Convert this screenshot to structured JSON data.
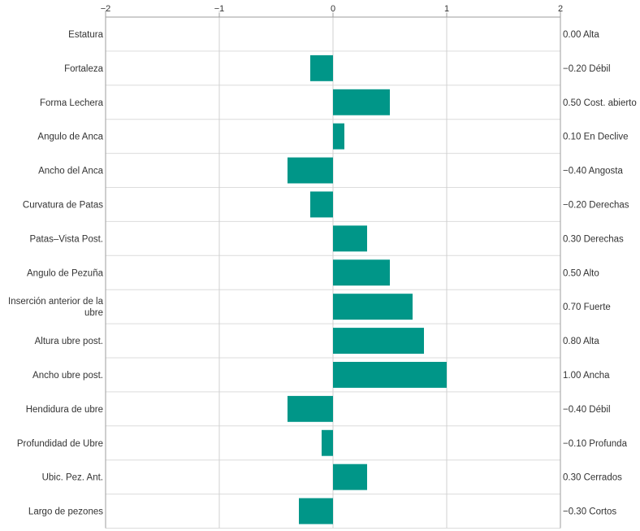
{
  "chart_data": {
    "type": "bar",
    "orientation": "horizontal",
    "xlim": [
      -2,
      2
    ],
    "x_ticks": [
      "−2",
      "−1",
      "0",
      "1",
      "2"
    ],
    "x_tick_values": [
      -2,
      -1,
      0,
      1,
      2
    ],
    "grid": true,
    "bar_color": "#009688",
    "categories": [
      "Estatura",
      "Fortaleza",
      "Forma Lechera",
      "Angulo de Anca",
      "Ancho del Anca",
      "Curvatura de Patas",
      "Patas–Vista Post.",
      "Angulo de Pezuña",
      "Inserción anterior de la ubre",
      "Altura ubre post.",
      "Ancho ubre post.",
      "Hendidura de ubre",
      "Profundidad de Ubre",
      "Ubic. Pez. Ant.",
      "Largo de pezones"
    ],
    "values": [
      0.0,
      -0.2,
      0.5,
      0.1,
      -0.4,
      -0.2,
      0.3,
      0.5,
      0.7,
      0.8,
      1.0,
      -0.4,
      -0.1,
      0.3,
      -0.3
    ],
    "value_labels": [
      "0.00 Alta",
      "−0.20 Débil",
      "0.50 Cost. abierto",
      "0.10 En Declive",
      "−0.40 Angosta",
      "−0.20 Derechas",
      "0.30 Derechas",
      "0.50 Alto",
      "0.70 Fuerte",
      "0.80 Alta",
      "1.00 Ancha",
      "−0.40 Débil",
      "−0.10 Profunda",
      "0.30 Cerrados",
      "−0.30 Cortos"
    ]
  }
}
